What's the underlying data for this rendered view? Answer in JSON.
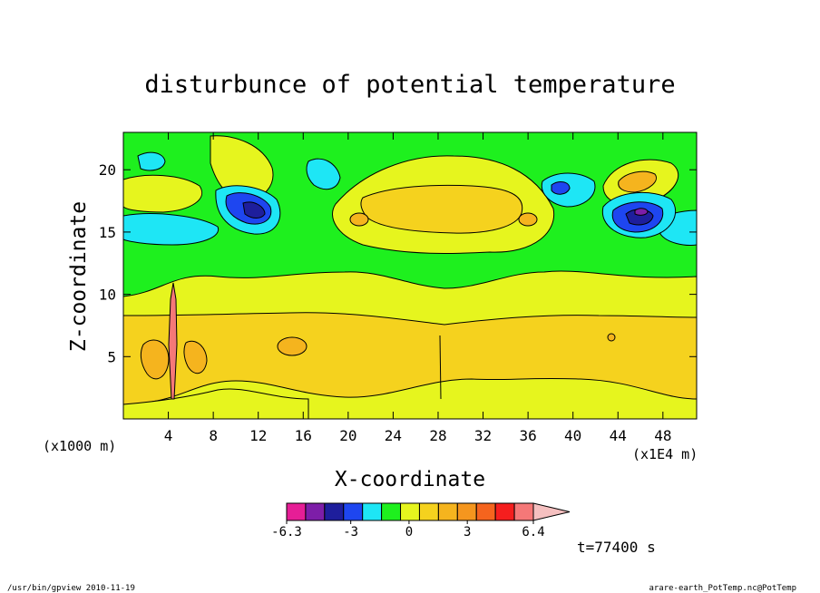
{
  "chart_data": {
    "type": "heatmap",
    "title": "disturbunce of potential temperature",
    "xlabel": "X-coordinate",
    "ylabel": "Z-coordinate",
    "x_unit_left": "(x1000 m)",
    "x_unit_right": "(x1E4 m)",
    "xlim": [
      0,
      51
    ],
    "ylim": [
      0,
      23
    ],
    "x_ticks": [
      4,
      8,
      12,
      16,
      20,
      24,
      28,
      32,
      36,
      40,
      44,
      48
    ],
    "y_ticks": [
      5,
      10,
      15,
      20
    ],
    "grid": false,
    "colorbar": {
      "levels": [
        -6.3,
        -5.4,
        -4.5,
        -3.6,
        -2.7,
        -1.8,
        -0.9,
        0,
        0.9,
        1.8,
        2.7,
        3.6,
        4.5,
        5.4,
        6.4
      ],
      "tick_labels": [
        "-6.3",
        "-3",
        "0",
        "3",
        "6.4"
      ],
      "tick_values": [
        -6.3,
        -3,
        0,
        3,
        6.4
      ],
      "colors": [
        "#e61e96",
        "#7d1ea8",
        "#1e1e9c",
        "#1e46f0",
        "#1ee6f5",
        "#1ef01e",
        "#e6f51e",
        "#f5d21e",
        "#f5b41e",
        "#f5961e",
        "#f5641e",
        "#f51e1e",
        "#f57878",
        "#f5c0c0"
      ]
    },
    "series": [
      {
        "band": "lower layer (z 1-8)",
        "dominant_value": 1.5
      },
      {
        "band": "middle layer (z 8-10)",
        "dominant_value": 0.5
      },
      {
        "band": "upper layer (z 10-15)",
        "dominant_value": -0.5
      },
      {
        "band": "top layer (z 15-23)",
        "dominant_value": "mixed -5 to 3"
      }
    ],
    "time_label": "t=77400 s"
  },
  "footer": {
    "left": "/usr/bin/gpview   2010-11-19",
    "right": "arare-earth_PotTemp.nc@PotTemp"
  }
}
